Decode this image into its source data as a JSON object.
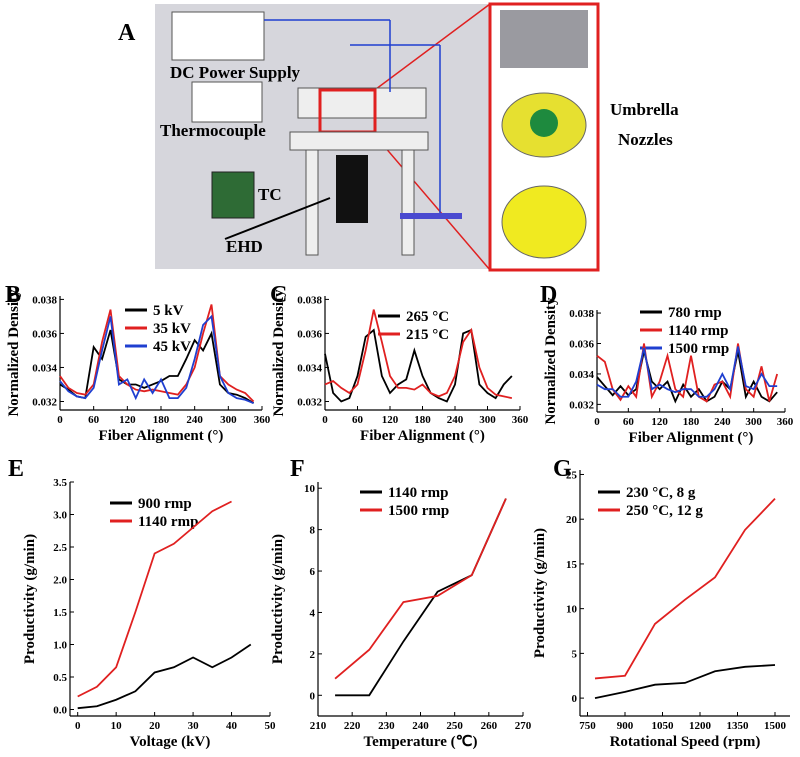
{
  "diagram": {
    "panel_label": "A",
    "power_label": "DC Power Supply",
    "thermo_label": "Thermocouple",
    "tc_label": "TC",
    "ehd_label": "EHD",
    "nozzle_label": [
      "Umbrella",
      "Nozzles"
    ]
  },
  "chart_data": [
    {
      "type": "line",
      "panel_label": "B",
      "x_label": "Fiber Alignment (°)",
      "y_label": "Normalized Density",
      "x": [
        0,
        15,
        30,
        45,
        60,
        75,
        90,
        105,
        120,
        135,
        150,
        165,
        180,
        195,
        210,
        225,
        240,
        255,
        270,
        285,
        300,
        315,
        330,
        345
      ],
      "series": [
        {
          "name": "5  kV",
          "color": "#000000",
          "values": [
            0.033,
            0.0327,
            0.0323,
            0.0322,
            0.0352,
            0.0345,
            0.0362,
            0.0333,
            0.033,
            0.033,
            0.0328,
            0.033,
            0.0332,
            0.0335,
            0.0335,
            0.0345,
            0.0356,
            0.035,
            0.036,
            0.033,
            0.0325,
            0.0324,
            0.0322,
            0.0319
          ]
        },
        {
          "name": "35 kV",
          "color": "#e02020",
          "values": [
            0.0335,
            0.0328,
            0.0325,
            0.0324,
            0.033,
            0.0355,
            0.0374,
            0.0335,
            0.033,
            0.0327,
            0.0326,
            0.0327,
            0.0326,
            0.0325,
            0.0324,
            0.033,
            0.034,
            0.036,
            0.0377,
            0.0335,
            0.033,
            0.0327,
            0.0325,
            0.032
          ]
        },
        {
          "name": "45 kV",
          "color": "#1f3fd0",
          "values": [
            0.0332,
            0.0326,
            0.0323,
            0.0322,
            0.0328,
            0.035,
            0.037,
            0.033,
            0.0333,
            0.0322,
            0.0333,
            0.0325,
            0.0333,
            0.0322,
            0.0322,
            0.0328,
            0.0345,
            0.0365,
            0.037,
            0.0335,
            0.0325,
            0.0322,
            0.0321,
            0.0319
          ]
        }
      ],
      "xlim": [
        0,
        360
      ],
      "xticks": [
        0,
        60,
        120,
        180,
        240,
        300,
        360
      ],
      "ylim": [
        0.0315,
        0.0382
      ],
      "yticks": [
        0.032,
        0.034,
        0.036,
        0.038
      ]
    },
    {
      "type": "line",
      "panel_label": "C",
      "x_label": "Fiber Alignment (°)",
      "y_label": "Normalized Density",
      "x": [
        0,
        15,
        30,
        45,
        60,
        75,
        90,
        105,
        120,
        135,
        150,
        165,
        180,
        195,
        210,
        225,
        240,
        255,
        270,
        285,
        300,
        315,
        330,
        345
      ],
      "series": [
        {
          "name": "265 °C",
          "color": "#000000",
          "values": [
            0.0348,
            0.0325,
            0.032,
            0.0322,
            0.0335,
            0.0358,
            0.0362,
            0.0335,
            0.0325,
            0.033,
            0.0333,
            0.035,
            0.0335,
            0.0325,
            0.0322,
            0.032,
            0.033,
            0.036,
            0.0362,
            0.033,
            0.0325,
            0.0322,
            0.033,
            0.0335
          ]
        },
        {
          "name": "215 °C",
          "color": "#e02020",
          "values": [
            0.033,
            0.0332,
            0.0328,
            0.0325,
            0.033,
            0.035,
            0.0374,
            0.0355,
            0.0335,
            0.0328,
            0.0328,
            0.0327,
            0.033,
            0.0325,
            0.0323,
            0.0325,
            0.0335,
            0.0355,
            0.0362,
            0.034,
            0.0328,
            0.0324,
            0.0323,
            0.0322
          ]
        }
      ],
      "xlim": [
        0,
        360
      ],
      "xticks": [
        0,
        60,
        120,
        180,
        240,
        300,
        360
      ],
      "ylim": [
        0.0315,
        0.0382
      ],
      "yticks": [
        0.032,
        0.034,
        0.036,
        0.038
      ]
    },
    {
      "type": "line",
      "panel_label": "D",
      "x_label": "Fiber Alignment (°)",
      "y_label": "Normalized Density",
      "x": [
        0,
        15,
        30,
        45,
        60,
        75,
        90,
        105,
        120,
        135,
        150,
        165,
        180,
        195,
        210,
        225,
        240,
        255,
        270,
        285,
        300,
        315,
        330,
        345
      ],
      "series": [
        {
          "name": "780   rmp",
          "color": "#000000",
          "values": [
            0.0338,
            0.0332,
            0.0326,
            0.0332,
            0.0326,
            0.033,
            0.0355,
            0.0335,
            0.033,
            0.0335,
            0.0322,
            0.0333,
            0.0325,
            0.033,
            0.0322,
            0.0325,
            0.0335,
            0.033,
            0.0355,
            0.0325,
            0.0335,
            0.0325,
            0.0322,
            0.0328
          ]
        },
        {
          "name": "1140 rmp",
          "color": "#e02020",
          "values": [
            0.0352,
            0.0348,
            0.033,
            0.0323,
            0.0332,
            0.0325,
            0.036,
            0.0325,
            0.0335,
            0.0352,
            0.033,
            0.0325,
            0.0352,
            0.0325,
            0.0322,
            0.0333,
            0.0335,
            0.0325,
            0.036,
            0.033,
            0.0325,
            0.0345,
            0.0322,
            0.034
          ]
        },
        {
          "name": "1500 rmp",
          "color": "#1f3fd0",
          "values": [
            0.0333,
            0.033,
            0.033,
            0.0325,
            0.0325,
            0.0335,
            0.0357,
            0.033,
            0.0333,
            0.033,
            0.0328,
            0.033,
            0.033,
            0.0325,
            0.0325,
            0.033,
            0.034,
            0.033,
            0.0358,
            0.0332,
            0.033,
            0.034,
            0.0332,
            0.0332
          ]
        }
      ],
      "xlim": [
        0,
        360
      ],
      "xticks": [
        0,
        60,
        120,
        180,
        240,
        300,
        360
      ],
      "ylim": [
        0.0315,
        0.0382
      ],
      "yticks": [
        0.032,
        0.034,
        0.036,
        0.038
      ]
    },
    {
      "type": "line",
      "panel_label": "E",
      "x_label": "Voltage (kV)",
      "y_label": "Productivity (g/min)",
      "series": [
        {
          "name": "900   rmp",
          "color": "#000000",
          "x": [
            0,
            5,
            10,
            15,
            20,
            25,
            30,
            35,
            40,
            45
          ],
          "values": [
            0.02,
            0.05,
            0.15,
            0.28,
            0.57,
            0.65,
            0.8,
            0.65,
            0.8,
            1.0
          ]
        },
        {
          "name": "1140 rmp",
          "color": "#e02020",
          "x": [
            0,
            5,
            10,
            15,
            20,
            25,
            30,
            35,
            40
          ],
          "values": [
            0.2,
            0.35,
            0.65,
            1.5,
            2.4,
            2.55,
            2.8,
            3.05,
            3.2
          ]
        }
      ],
      "xlim": [
        -2,
        50
      ],
      "xticks": [
        0,
        10,
        20,
        30,
        40,
        50
      ],
      "ylim": [
        -0.1,
        3.5
      ],
      "yticks": [
        {
          "value": 0,
          "label": "0.0"
        },
        0.5,
        {
          "value": 1,
          "label": "1.0"
        },
        1.5,
        {
          "value": 2,
          "label": "2.0"
        },
        2.5,
        {
          "value": 3,
          "label": "3.0"
        },
        3.5
      ]
    },
    {
      "type": "line",
      "panel_label": "F",
      "x_label": "Temperature (℃)",
      "y_label": "Productivity (g/min)",
      "series": [
        {
          "name": "1140   rmp",
          "color": "#000000",
          "x": [
            215,
            225,
            235,
            245,
            255,
            265
          ],
          "values": [
            0,
            0,
            2.6,
            5.0,
            5.8,
            9.5
          ]
        },
        {
          "name": "1500   rmp",
          "color": "#e02020",
          "x": [
            215,
            225,
            235,
            245,
            255,
            265
          ],
          "values": [
            0.8,
            2.2,
            4.5,
            4.8,
            5.8,
            9.5
          ]
        }
      ],
      "xlim": [
        210,
        270
      ],
      "xticks": [
        210,
        220,
        230,
        240,
        250,
        260,
        270
      ],
      "ylim": [
        -1,
        10.3
      ],
      "yticks": [
        0,
        2,
        4,
        6,
        8,
        10
      ]
    },
    {
      "type": "line",
      "panel_label": "G",
      "x_label": "Rotational Speed (rpm)",
      "y_label": "Productivity (g/min)",
      "series": [
        {
          "name": "230 °C, 8  g",
          "color": "#000000",
          "x": [
            780,
            900,
            1020,
            1140,
            1260,
            1380,
            1500
          ],
          "values": [
            0,
            0.7,
            1.5,
            1.7,
            3.0,
            3.5,
            3.7
          ]
        },
        {
          "name": "250 °C, 12 g",
          "color": "#e02020",
          "x": [
            780,
            900,
            1020,
            1140,
            1260,
            1380,
            1500
          ],
          "values": [
            2.2,
            2.5,
            8.3,
            11,
            13.5,
            18.8,
            22.3
          ]
        }
      ],
      "xlim": [
        720,
        1560
      ],
      "xticks": [
        750,
        900,
        1050,
        1200,
        1350,
        1500
      ],
      "ylim": [
        -2,
        25.5
      ],
      "yticks": [
        0,
        5,
        10,
        15,
        20,
        25
      ]
    }
  ]
}
